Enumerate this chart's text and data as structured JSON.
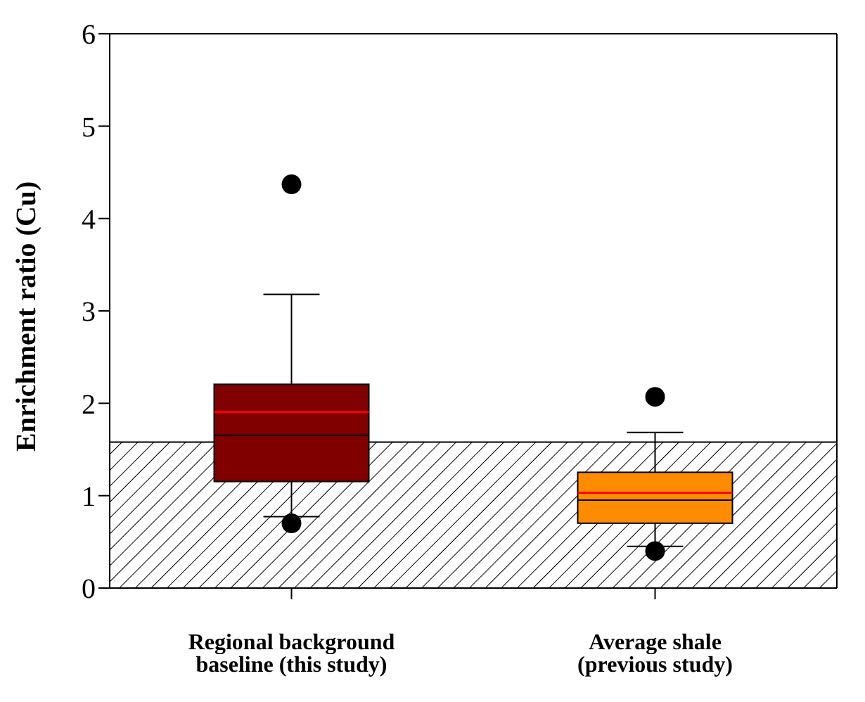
{
  "chart_data": {
    "type": "box",
    "ylabel": "Enrichment ratio (Cu)",
    "categories": [
      "Regional background baseline (this study)",
      "Average shale (previous study)"
    ],
    "colors": [
      "#800000",
      "#ff8c00"
    ],
    "boxes": [
      {
        "low": 0.77,
        "q1": 1.15,
        "median": 1.65,
        "q3": 2.2,
        "high": 3.17,
        "mean": 1.9,
        "outliers": [
          4.37,
          0.7
        ]
      },
      {
        "low": 0.45,
        "q1": 0.7,
        "median": 0.95,
        "q3": 1.25,
        "high": 1.68,
        "mean": 1.03,
        "outliers": [
          2.07,
          0.4
        ]
      }
    ],
    "ylim": [
      0,
      6
    ],
    "yticks": [
      0,
      1,
      2,
      3,
      4,
      5,
      6
    ],
    "bands": [
      {
        "axis": "y",
        "from": 0,
        "to": 1.58
      }
    ]
  }
}
